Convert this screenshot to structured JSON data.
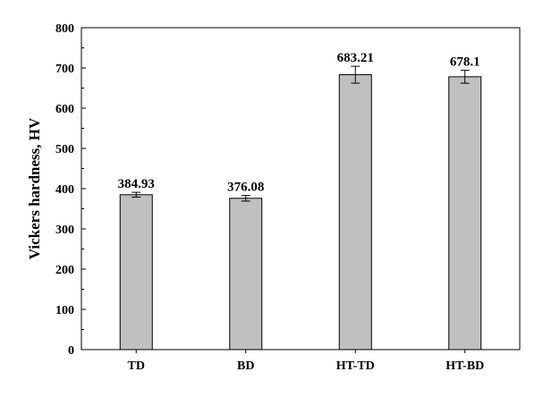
{
  "chart_data": {
    "type": "bar",
    "title": "",
    "xlabel": "",
    "ylabel": "Vickers hardness, HV",
    "categories": [
      "TD",
      "BD",
      "HT-TD",
      "HT-BD"
    ],
    "values": [
      384.93,
      376.08,
      683.21,
      678.1
    ],
    "value_labels": [
      "384.93",
      "376.08",
      "683.21",
      "678.1"
    ],
    "error": [
      6,
      7,
      21,
      16
    ],
    "ylim": [
      0,
      800
    ],
    "yticks": [
      0,
      100,
      200,
      300,
      400,
      500,
      600,
      700,
      800
    ],
    "ytick_labels": [
      "0",
      "100",
      "200",
      "300",
      "400",
      "500",
      "600",
      "700",
      "800"
    ],
    "grid": false,
    "legend": "none",
    "bar_color": "#c0c0c0",
    "edge_color": "#000000"
  }
}
